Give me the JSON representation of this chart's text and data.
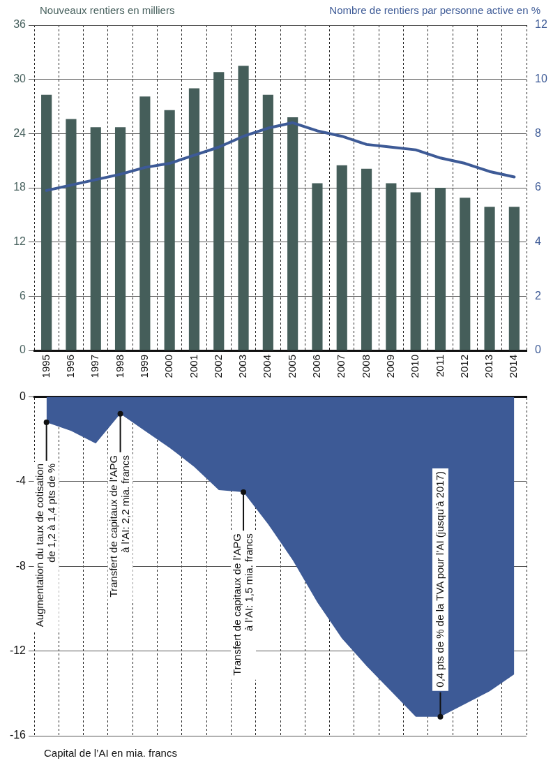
{
  "chart_data": [
    {
      "type": "bar",
      "ylabel": "Nouveaux rentiers en milliers",
      "y2label": "Nombre de rentiers par personne active en %",
      "categories": [
        "1995",
        "1996",
        "1997",
        "1998",
        "1999",
        "2000",
        "2001",
        "2002",
        "2003",
        "2004",
        "2005",
        "2006",
        "2007",
        "2008",
        "2009",
        "2010",
        "2011",
        "2012",
        "2013",
        "2014"
      ],
      "series": [
        {
          "type": "bar",
          "color": "#455e5a",
          "values": [
            28.3,
            25.6,
            24.7,
            24.7,
            28.1,
            26.6,
            29.0,
            30.8,
            31.5,
            28.3,
            25.8,
            18.5,
            20.5,
            20.1,
            18.5,
            17.5,
            18.0,
            16.9,
            15.9,
            15.9
          ]
        },
        {
          "type": "line",
          "axis": "y2",
          "color": "#3d5a96",
          "values": [
            5.9,
            6.1,
            6.3,
            6.5,
            6.75,
            6.9,
            7.2,
            7.5,
            7.9,
            8.2,
            8.4,
            8.1,
            7.9,
            7.6,
            7.5,
            7.4,
            7.1,
            6.9,
            6.6,
            6.4
          ]
        }
      ],
      "ylim": [
        0,
        36
      ],
      "yticks": [
        0,
        6,
        12,
        18,
        24,
        30,
        36
      ],
      "y2lim": [
        0,
        12
      ],
      "y2ticks": [
        0,
        2,
        4,
        6,
        8,
        10,
        12
      ],
      "grid": true,
      "marker": "none"
    },
    {
      "type": "area",
      "categories": [
        "1995",
        "1996",
        "1997",
        "1998",
        "1999",
        "2000",
        "2001",
        "2002",
        "2003",
        "2004",
        "2005",
        "2006",
        "2007",
        "2008",
        "2009",
        "2010",
        "2011",
        "2012",
        "2013",
        "2014"
      ],
      "values": [
        -1.2,
        -1.6,
        -2.2,
        -0.8,
        -1.6,
        -2.4,
        -3.3,
        -4.4,
        -4.5,
        -6.0,
        -7.7,
        -9.7,
        -11.4,
        -12.7,
        -13.9,
        -15.1,
        -15.1,
        -14.5,
        -13.9,
        -13.1
      ],
      "color": "#3d5a96",
      "ylim": [
        -16,
        0
      ],
      "yticks": [
        0,
        -4,
        -8,
        -12,
        -16
      ],
      "grid": true,
      "tick_labels": "y",
      "marker": "none",
      "annotations": [
        {
          "text": "Augmentation du taux de cotisation\nde 1,2 à 1,4 pts de %",
          "x": "1995",
          "y": -1.2
        },
        {
          "text": "Transfert de capitaux de l’APG\nà l’AI: 2,2 mia. francs",
          "x": "1998",
          "y": -0.8
        },
        {
          "text": "Transfert de capitaux de l’APG\nà l’AI: 1,5 mia. francs",
          "x": "2003",
          "y": -4.5
        },
        {
          "text": "0,4 pts de % de la TVA pour l’AI (jusqu’à 2017)",
          "x": "2011",
          "y": -15.1
        },
        "Capital de l’AI en mia. francs"
      ]
    }
  ]
}
